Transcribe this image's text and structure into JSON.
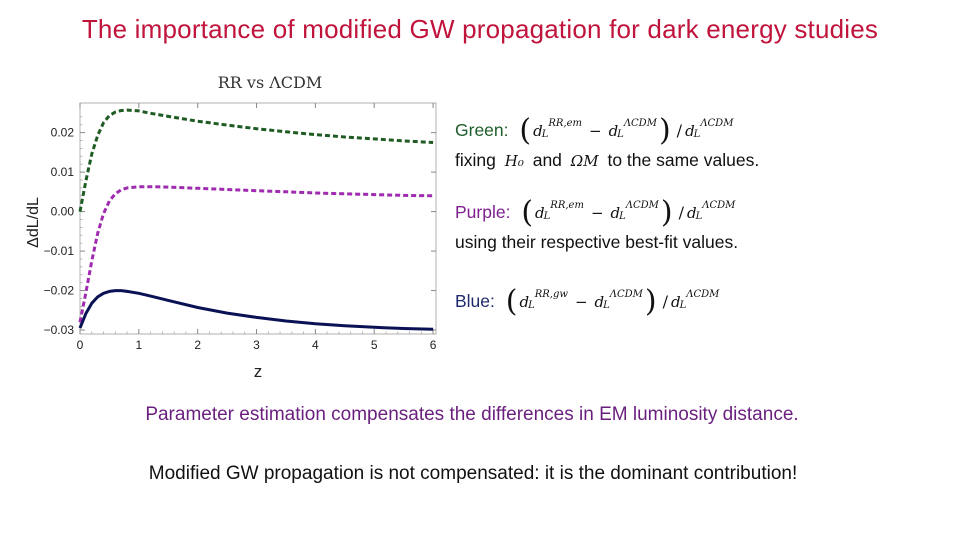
{
  "slide": {
    "title": "The importance of modified GW propagation for dark energy studies",
    "conclusion_1": "Parameter estimation compensates the differences in EM luminosity distance.",
    "conclusion_2": "Modified GW propagation is not compensated: it is the dominant contribution!"
  },
  "legend": {
    "green_label": "Green:",
    "green_text_1": "fixing",
    "green_text_2": "and",
    "green_text_3": "to the same values.",
    "purple_label": "Purple:",
    "purple_text": "using their respective best-fit values.",
    "blue_label": "Blue:",
    "sym_H0": "H₀",
    "sym_OmegaM": "ΩM",
    "green_num_sup": "RR,em",
    "purple_num_sup": "RR,em",
    "blue_num_sup": "RR,gw",
    "lcdm_sup": "ΛCDM",
    "d_L": "d",
    "sub_L": "L",
    "minus": "−",
    "slash": "/",
    "lparen": "(",
    "rparen": ")"
  },
  "chart_data": {
    "type": "line",
    "title": "RR vs ΛCDM",
    "xlabel": "z",
    "ylabel": "ΔdL/dL",
    "xlim": [
      0,
      6.05
    ],
    "ylim": [
      -0.031,
      0.0275
    ],
    "xticks": [
      0,
      1,
      2,
      3,
      4,
      5,
      6
    ],
    "xtick_labels": [
      "0",
      "1",
      "2",
      "3",
      "4",
      "5",
      "6"
    ],
    "yticks": [
      -0.03,
      -0.02,
      -0.01,
      0.0,
      0.01,
      0.02
    ],
    "ytick_labels": [
      "-0.03",
      "-0.02",
      "-0.01",
      "0.00",
      "0.01",
      "0.02"
    ],
    "grid": false,
    "series": [
      {
        "color": "#1e5c23",
        "style": "dashed",
        "x": [
          0,
          0.1,
          0.2,
          0.3,
          0.4,
          0.5,
          0.6,
          0.7,
          0.8,
          1.0,
          1.2,
          1.5,
          2.0,
          2.5,
          3.0,
          3.5,
          4.0,
          4.5,
          5.0,
          5.5,
          6.0
        ],
        "y": [
          0.0,
          0.0078,
          0.0146,
          0.0193,
          0.0225,
          0.0243,
          0.0252,
          0.0256,
          0.0257,
          0.0255,
          0.0249,
          0.0241,
          0.0229,
          0.0219,
          0.021,
          0.0202,
          0.0195,
          0.0189,
          0.0184,
          0.0179,
          0.0175
        ]
      },
      {
        "color": "#a02ab0",
        "style": "dashed",
        "x": [
          0,
          0.1,
          0.2,
          0.3,
          0.4,
          0.5,
          0.6,
          0.7,
          0.8,
          1.0,
          1.2,
          1.5,
          2.0,
          2.5,
          3.0,
          3.5,
          4.0,
          4.5,
          5.0,
          5.5,
          6.0
        ],
        "y": [
          -0.028,
          -0.0205,
          -0.0125,
          -0.0055,
          -0.0005,
          0.0027,
          0.0045,
          0.0055,
          0.006,
          0.0063,
          0.0063,
          0.0062,
          0.0059,
          0.0056,
          0.0053,
          0.005,
          0.0047,
          0.0045,
          0.0043,
          0.0041,
          0.004
        ]
      },
      {
        "color": "#0a1255",
        "style": "solid",
        "x": [
          0,
          0.1,
          0.2,
          0.3,
          0.4,
          0.5,
          0.6,
          0.7,
          0.8,
          1.0,
          1.2,
          1.5,
          2.0,
          2.5,
          3.0,
          3.5,
          4.0,
          4.5,
          5.0,
          5.5,
          6.0
        ],
        "y": [
          -0.0295,
          -0.0258,
          -0.0232,
          -0.0216,
          -0.0207,
          -0.0202,
          -0.02,
          -0.02,
          -0.0202,
          -0.0207,
          -0.0214,
          -0.0225,
          -0.0243,
          -0.0257,
          -0.0268,
          -0.0277,
          -0.0284,
          -0.0289,
          -0.0293,
          -0.0296,
          -0.0298
        ]
      }
    ]
  }
}
